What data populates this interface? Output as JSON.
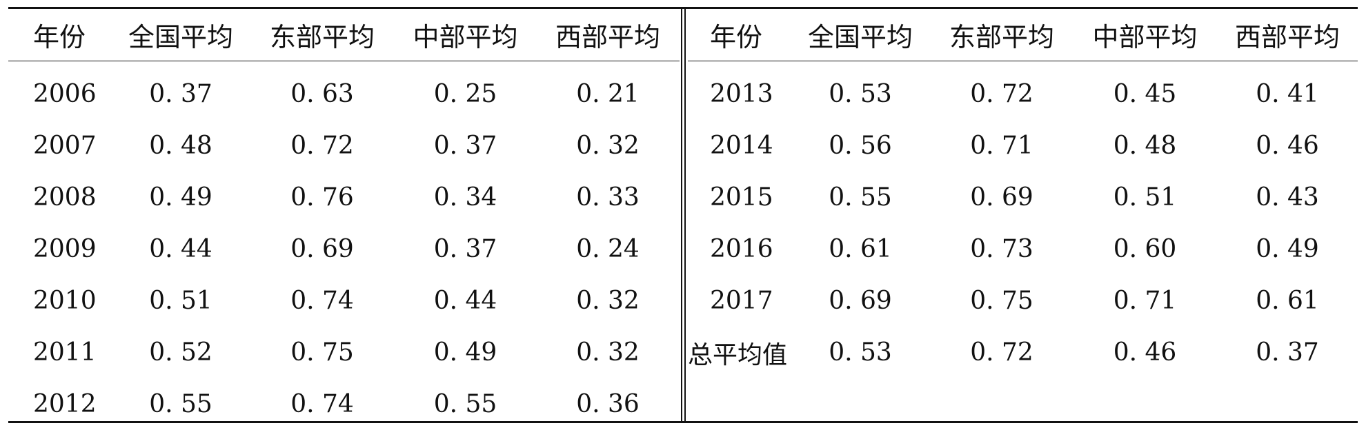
{
  "headers_left": [
    "年份",
    "全国平均",
    "东部平均",
    "中部平均",
    "西部平均"
  ],
  "headers_right": [
    "年份",
    "全国平均",
    "东部平均",
    "中部平均",
    "西部平均"
  ],
  "rows_left": [
    [
      "2006",
      "0. 37",
      "0. 63",
      "0. 25",
      "0. 21"
    ],
    [
      "2007",
      "0. 48",
      "0. 72",
      "0. 37",
      "0. 32"
    ],
    [
      "2008",
      "0. 49",
      "0. 76",
      "0. 34",
      "0. 33"
    ],
    [
      "2009",
      "0. 44",
      "0. 69",
      "0. 37",
      "0. 24"
    ],
    [
      "2010",
      "0. 51",
      "0. 74",
      "0. 44",
      "0. 32"
    ],
    [
      "2011",
      "0. 52",
      "0. 75",
      "0. 49",
      "0. 32"
    ],
    [
      "2012",
      "0. 55",
      "0. 74",
      "0. 55",
      "0. 36"
    ]
  ],
  "rows_right": [
    [
      "2013",
      "0. 53",
      "0. 72",
      "0. 45",
      "0. 41"
    ],
    [
      "2014",
      "0. 56",
      "0. 71",
      "0. 48",
      "0. 46"
    ],
    [
      "2015",
      "0. 55",
      "0. 69",
      "0. 51",
      "0. 43"
    ],
    [
      "2016",
      "0. 61",
      "0. 73",
      "0. 60",
      "0. 49"
    ],
    [
      "2017",
      "0. 69",
      "0. 75",
      "0. 71",
      "0. 61"
    ],
    [
      "总平均值",
      "0. 53",
      "0. 72",
      "0. 46",
      "0. 37"
    ]
  ]
}
